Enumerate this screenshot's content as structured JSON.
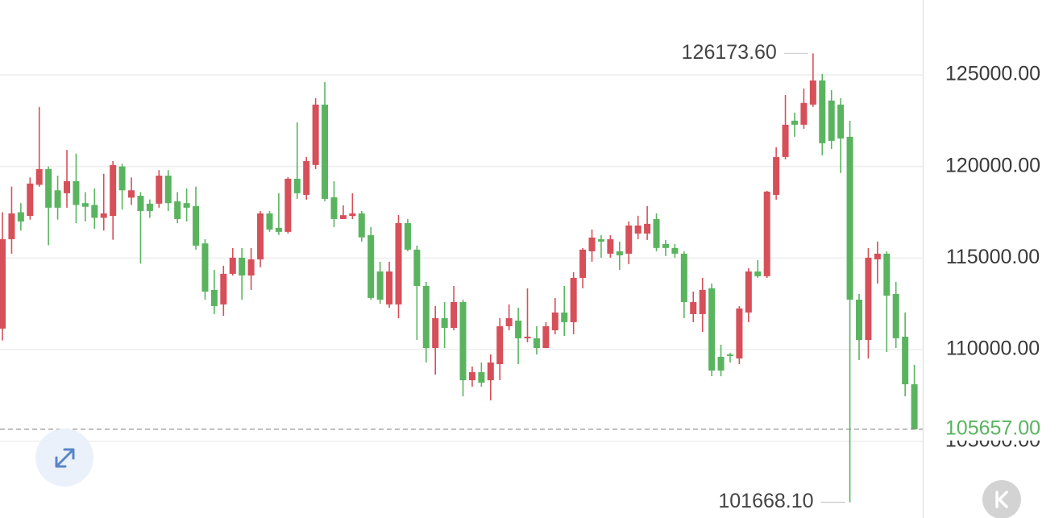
{
  "chart_data": {
    "type": "candlestick",
    "up_color": "#d64f59",
    "down_color": "#5ab45f",
    "grid": true,
    "ylim": [
      100810,
      129090
    ],
    "yticks": [
      {
        "value": 105000,
        "label": "105000.00"
      },
      {
        "value": 110000,
        "label": "110000.00"
      },
      {
        "value": 115000,
        "label": "115000.00"
      },
      {
        "value": 120000,
        "label": "120000.00"
      },
      {
        "value": 125000,
        "label": "125000.00"
      }
    ],
    "high_label": {
      "value": 126173.6,
      "label": "126173.60"
    },
    "low_label": {
      "value": 101668.1,
      "label": "101668.10"
    },
    "last_price": {
      "value": 105657,
      "label": "105657.00"
    },
    "open": [
      111150,
      116030,
      117500,
      117300,
      119000,
      119860,
      118700,
      118540,
      119200,
      118000,
      117900,
      117200,
      117300,
      120000,
      118300,
      118400,
      117970,
      117970,
      119500,
      118100,
      118000,
      117840,
      115800,
      113260,
      112470,
      114140,
      115020,
      114050,
      114930,
      117440,
      116650,
      116430,
      119330,
      118450,
      120080,
      123380,
      118320,
      117130,
      117300,
      117440,
      116250,
      114270,
      112470,
      112470,
      116910,
      115460,
      113480,
      110090,
      111720,
      111190,
      112600,
      108330,
      108770,
      108330,
      109210,
      111280,
      111590,
      110620,
      110620,
      110090,
      111060,
      112030,
      111500,
      113920,
      115370,
      116030,
      115240,
      115370,
      115240,
      116340,
      116340,
      117130,
      115770,
      115550,
      115240,
      111940,
      111940,
      113350,
      109610,
      109740,
      109520,
      112030,
      114270,
      114010,
      118450,
      120520,
      122500,
      122280,
      123380,
      124700,
      123600,
      123380,
      121620,
      112730,
      110530,
      114930,
      115240,
      113040,
      110710,
      108110
    ],
    "high": [
      117500,
      118900,
      118000,
      119400,
      123250,
      120000,
      119500,
      120900,
      120700,
      118600,
      118800,
      119600,
      120300,
      120150,
      119400,
      118600,
      118200,
      119800,
      119800,
      118600,
      118800,
      118900,
      116030,
      114360,
      114580,
      115550,
      115550,
      115550,
      117570,
      117570,
      118540,
      119420,
      122410,
      120520,
      123730,
      124610,
      119200,
      117880,
      118540,
      117570,
      116690,
      114800,
      114800,
      117350,
      117130,
      115680,
      113700,
      112380,
      112600,
      113480,
      112730,
      109080,
      109300,
      109740,
      111720,
      112470,
      112290,
      113350,
      111280,
      111500,
      112820,
      113480,
      114230,
      115550,
      116560,
      116250,
      116250,
      115900,
      117000,
      117310,
      117840,
      117440,
      115990,
      115770,
      115370,
      113170,
      113920,
      113610,
      110270,
      109830,
      112380,
      114450,
      114890,
      118670,
      121050,
      123900,
      122940,
      124260,
      126173.6,
      125050,
      124170,
      123730,
      122500,
      113040,
      115550,
      115900,
      115370,
      113700,
      112030,
      109170
    ],
    "low": [
      110500,
      115240,
      116500,
      117100,
      118900,
      115700,
      117100,
      117750,
      116900,
      117000,
      116600,
      116500,
      116000,
      117650,
      117900,
      114700,
      117200,
      117750,
      117570,
      116900,
      117000,
      115460,
      112730,
      111940,
      111850,
      114050,
      112730,
      113260,
      114500,
      116430,
      116260,
      116340,
      118230,
      118190,
      119860,
      118100,
      116690,
      117130,
      117130,
      115900,
      112730,
      112510,
      112290,
      111720,
      115370,
      110530,
      109300,
      108640,
      110090,
      111060,
      107450,
      107980,
      107980,
      107230,
      108330,
      111060,
      109210,
      110400,
      109740,
      110090,
      110840,
      110750,
      110840,
      113350,
      114800,
      115020,
      115020,
      114360,
      114670,
      116030,
      115990,
      115370,
      115110,
      115020,
      111720,
      111500,
      110970,
      108550,
      108550,
      109300,
      109210,
      111500,
      113920,
      113920,
      118190,
      120390,
      121620,
      122060,
      123250,
      120610,
      120960,
      119640,
      101668.1,
      109430,
      109520,
      113610,
      109870,
      110090,
      107450,
      105657
    ],
    "close": [
      116030,
      117440,
      117000,
      119070,
      119860,
      117750,
      117750,
      119200,
      117900,
      117800,
      117200,
      117440,
      120080,
      118700,
      118700,
      117570,
      117570,
      119500,
      118000,
      117130,
      117750,
      115680,
      113170,
      112380,
      114140,
      115020,
      114050,
      114930,
      117440,
      116560,
      116430,
      119330,
      118540,
      120300,
      123380,
      118230,
      117130,
      117340,
      117440,
      116130,
      112820,
      112730,
      114270,
      116910,
      115460,
      113480,
      110090,
      111720,
      111190,
      112600,
      108330,
      108770,
      108200,
      109300,
      111280,
      111720,
      110620,
      110710,
      110090,
      111280,
      112030,
      111500,
      113920,
      115460,
      116120,
      115900,
      116030,
      115150,
      116780,
      116780,
      116870,
      115550,
      115550,
      115240,
      112600,
      112600,
      113260,
      108860,
      108860,
      109650,
      112250,
      114270,
      114010,
      118630,
      120520,
      122280,
      122280,
      123470,
      124700,
      121270,
      121400,
      121530,
      112730,
      110530,
      115020,
      115240,
      112950,
      110620,
      108110,
      105657
    ]
  }
}
